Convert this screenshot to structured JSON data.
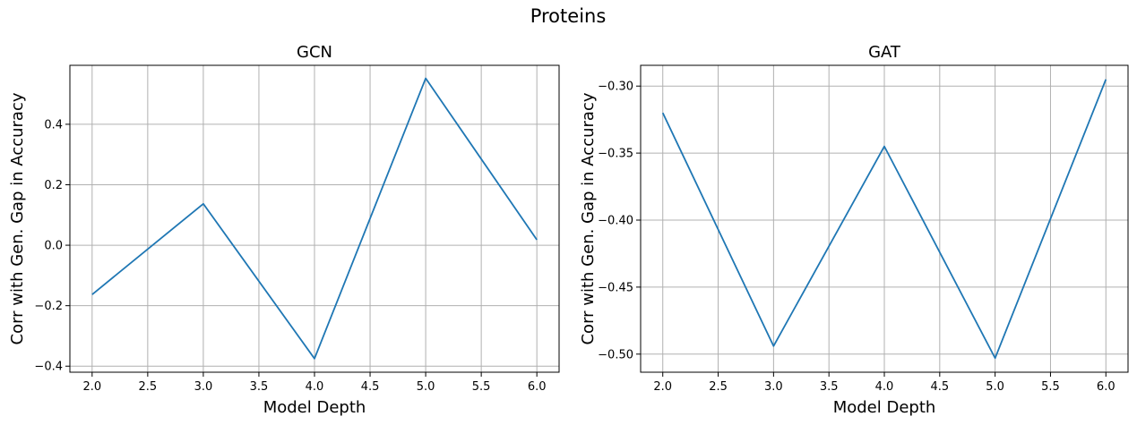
{
  "suptitle": "Proteins",
  "chart_data": [
    {
      "type": "line",
      "title": "GCN",
      "xlabel": "Model Depth",
      "ylabel": "Corr with Gen. Gap in Accuracy",
      "x": [
        2,
        3,
        4,
        5,
        6
      ],
      "series": [
        {
          "name": "GCN",
          "color": "#1f77b4",
          "values": [
            -0.163,
            0.137,
            -0.375,
            0.552,
            0.018
          ]
        }
      ],
      "xlim": [
        1.8,
        6.2
      ],
      "ylim": [
        -0.42,
        0.595
      ],
      "xticks": [
        2.0,
        2.5,
        3.0,
        3.5,
        4.0,
        4.5,
        5.0,
        5.5,
        6.0
      ],
      "xtick_labels": [
        "2.0",
        "2.5",
        "3.0",
        "3.5",
        "4.0",
        "4.5",
        "5.0",
        "5.5",
        "6.0"
      ],
      "yticks": [
        -0.4,
        -0.2,
        0.0,
        0.2,
        0.4
      ],
      "ytick_labels": [
        "−0.4",
        "−0.2",
        "0.0",
        "0.2",
        "0.4"
      ],
      "grid": true
    },
    {
      "type": "line",
      "title": "GAT",
      "xlabel": "Model Depth",
      "ylabel": "Corr with Gen. Gap in Accuracy",
      "x": [
        2,
        3,
        4,
        5,
        6
      ],
      "series": [
        {
          "name": "GAT",
          "color": "#1f77b4",
          "values": [
            -0.32,
            -0.494,
            -0.345,
            -0.503,
            -0.295
          ]
        }
      ],
      "xlim": [
        1.8,
        6.2
      ],
      "ylim": [
        -0.5135,
        -0.2845
      ],
      "xticks": [
        2.0,
        2.5,
        3.0,
        3.5,
        4.0,
        4.5,
        5.0,
        5.5,
        6.0
      ],
      "xtick_labels": [
        "2.0",
        "2.5",
        "3.0",
        "3.5",
        "4.0",
        "4.5",
        "5.0",
        "5.5",
        "6.0"
      ],
      "yticks": [
        -0.5,
        -0.45,
        -0.4,
        -0.35,
        -0.3
      ],
      "ytick_labels": [
        "−0.50",
        "−0.45",
        "−0.40",
        "−0.35",
        "−0.30"
      ],
      "grid": true
    }
  ]
}
